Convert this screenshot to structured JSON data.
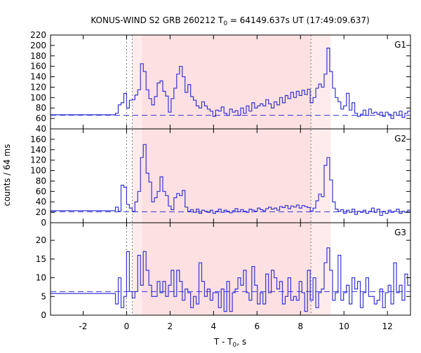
{
  "chart_data": {
    "type": "line",
    "title": {
      "main": "KONUS-WIND S2 GRB 260212 T",
      "sub": "0",
      "rest": " = 64149.637s UT (17:49:09.637)"
    },
    "xlabel": {
      "main": "T - T",
      "sub": "0",
      "rest": ", s"
    },
    "ylabel": "counts / 64 ms",
    "xlim": [
      -3.5,
      13.06
    ],
    "xticks": [
      -2,
      0,
      2,
      4,
      6,
      8,
      10,
      12
    ],
    "bin_start": -0.512,
    "bin_width": 0.128,
    "regions": [
      {
        "from": 0.26,
        "to": 0.7,
        "color": "#feeced"
      },
      {
        "from": 0.7,
        "to": 8.48,
        "color": "#fde0e1"
      },
      {
        "from": 8.48,
        "to": 9.4,
        "color": "#feeced"
      }
    ],
    "vlines": [
      0,
      0.26,
      8.48
    ],
    "line_color": "#3434d8",
    "panels": [
      {
        "name": "G1",
        "ylim": [
          40,
          220
        ],
        "yticks": [
          40,
          60,
          80,
          100,
          120,
          140,
          160,
          180,
          200,
          220
        ],
        "pre_level": 67,
        "background": 66,
        "values": [
          70,
          86,
          90,
          108,
          80,
          95,
          96,
          105,
          115,
          165,
          150,
          115,
          98,
          86,
          102,
          128,
          132,
          112,
          103,
          72,
          98,
          118,
          145,
          160,
          140,
          110,
          125,
          102,
          95,
          84,
          80,
          92,
          84,
          78,
          74,
          64,
          76,
          74,
          82,
          70,
          66,
          78,
          72,
          75,
          66,
          80,
          70,
          84,
          74,
          90,
          80,
          84,
          88,
          84,
          96,
          88,
          80,
          92,
          86,
          100,
          90,
          104,
          98,
          110,
          100,
          112,
          104,
          114,
          106,
          116,
          90,
          100,
          118,
          126,
          120,
          145,
          195,
          150,
          118,
          100,
          92,
          78,
          84,
          108,
          76,
          90,
          70,
          64,
          68,
          76,
          66,
          78,
          70,
          72,
          68,
          72,
          64,
          72,
          68,
          60,
          72,
          66,
          74,
          62,
          70,
          74
        ]
      },
      {
        "name": "G2",
        "ylim": [
          0,
          180
        ],
        "yticks": [
          0,
          20,
          40,
          60,
          80,
          100,
          120,
          140,
          160
        ],
        "pre_level": 23,
        "background": 21,
        "values": [
          30,
          22,
          72,
          68,
          35,
          28,
          22,
          40,
          60,
          125,
          150,
          95,
          78,
          40,
          48,
          60,
          88,
          60,
          52,
          32,
          25,
          48,
          56,
          52,
          62,
          30,
          22,
          25,
          20,
          26,
          18,
          24,
          22,
          20,
          24,
          18,
          22,
          26,
          20,
          24,
          22,
          19,
          23,
          27,
          21,
          25,
          22,
          20,
          26,
          24,
          22,
          28,
          25,
          23,
          27,
          30,
          26,
          28,
          24,
          31,
          29,
          33,
          27,
          32,
          30,
          34,
          28,
          33,
          31,
          29,
          22,
          28,
          42,
          55,
          50,
          110,
          125,
          82,
          40,
          26,
          22,
          25,
          18,
          24,
          20,
          26,
          16,
          22,
          20,
          24,
          18,
          22,
          28,
          20,
          26,
          14,
          22,
          18,
          24,
          20,
          22,
          26,
          18,
          22,
          20,
          24
        ]
      },
      {
        "name": "G3",
        "ylim": [
          0,
          24.7
        ],
        "yticks": [
          0,
          5,
          10,
          15,
          20
        ],
        "pre_level": 5.8,
        "background": 6.3,
        "values": [
          3,
          10,
          2,
          5,
          17,
          6.3,
          4.6,
          6.3,
          16,
          8,
          17,
          12,
          8,
          5,
          5,
          9,
          6,
          9,
          5,
          8,
          12,
          5,
          12,
          9,
          4,
          7,
          6,
          2,
          5,
          3,
          14,
          9,
          5,
          7,
          4,
          6,
          6,
          2,
          7,
          1,
          9,
          1,
          6,
          7,
          10,
          8,
          12,
          6,
          4,
          13,
          8,
          3,
          6,
          3,
          11,
          6,
          12,
          10,
          7,
          9,
          3,
          5,
          10,
          4,
          5,
          4,
          9,
          6,
          1,
          12,
          4,
          10,
          2,
          6,
          7,
          14,
          18,
          12,
          4,
          6,
          16,
          4,
          6,
          8,
          3,
          10,
          7,
          9,
          2,
          6,
          10,
          5,
          5,
          3,
          4,
          7,
          2,
          6,
          8,
          3,
          14,
          6,
          8,
          4,
          11,
          8
        ]
      }
    ]
  }
}
